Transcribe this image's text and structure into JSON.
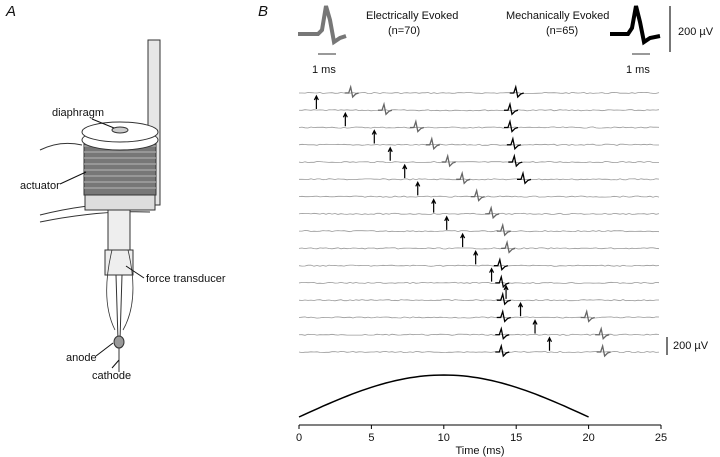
{
  "panel_a": {
    "label": "A",
    "labels": {
      "diaphragm": "diaphragm",
      "actuator": "actuator",
      "force_transducer": "force transducer",
      "anode": "anode",
      "cathode": "cathode"
    }
  },
  "panel_b": {
    "label": "B",
    "insets": [
      {
        "title": "Electrically Evoked",
        "n": "(n=70)",
        "scale": "1 ms"
      },
      {
        "title": "Mechanically Evoked",
        "n": "(n=65)",
        "scale": "1 ms"
      }
    ],
    "inset_scale": "200 µV",
    "trace_scale": "200 µV",
    "x_label": "Time (ms)",
    "xlim": [
      0,
      25
    ],
    "xticks": [
      0,
      5,
      10,
      15,
      20,
      25
    ],
    "stimulus_ms": [
      1.2,
      3.2,
      5.2,
      6.3,
      7.3,
      8.2,
      9.3,
      10.2,
      11.3,
      12.2,
      13.3,
      14.3,
      15.3,
      16.3,
      17.3,
      null
    ],
    "electrical_spike_ms": [
      3.5,
      5.8,
      8.0,
      9.1,
      10.2,
      11.2,
      12.2,
      13.2,
      14.0,
      14.3,
      null,
      null,
      null,
      19.8,
      20.8,
      20.9
    ],
    "mechanical_spike_ms": [
      14.9,
      14.5,
      14.5,
      14.7,
      14.8,
      15.4,
      null,
      null,
      null,
      null,
      13.8,
      13.9,
      14.0,
      14.0,
      13.9,
      13.9
    ],
    "mechanical_stimulus_ms": [
      0,
      20
    ]
  }
}
